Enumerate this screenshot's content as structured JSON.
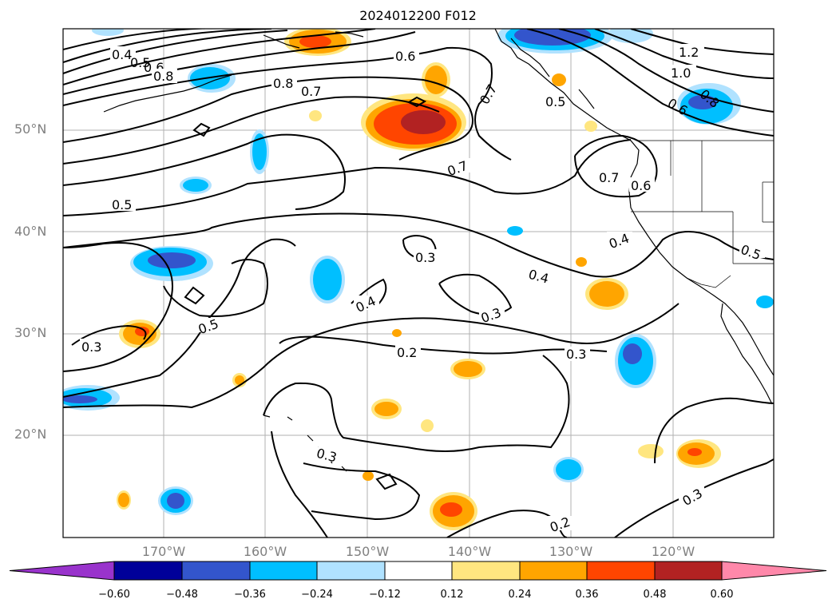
{
  "title": "2024012200 F012",
  "lat_ticks": [
    "50°N",
    "40°N",
    "30°N",
    "20°N"
  ],
  "lon_ticks": [
    "170°W",
    "160°W",
    "150°W",
    "140°W",
    "130°W",
    "120°W"
  ],
  "colorbar": {
    "ticks": [
      "−0.60",
      "−0.48",
      "−0.36",
      "−0.24",
      "−0.12",
      "0.12",
      "0.24",
      "0.36",
      "0.48",
      "0.60"
    ],
    "colors": [
      "#9933cc",
      "#000099",
      "#3355cc",
      "#00bfff",
      "#b0e2ff",
      "#ffffff",
      "#ffe680",
      "#ffa500",
      "#ff4500",
      "#b22222",
      "#ff88aa"
    ]
  },
  "contour_labels": [
    "0.4",
    "0.5",
    "0.6",
    "0.8",
    "0.8",
    "0.7",
    "0.6",
    "0.7",
    "0.5",
    "1.2",
    "1.0",
    "0.8",
    "0.6",
    "0.7",
    "0.6",
    "0.7",
    "0.5",
    "0.4",
    "0.3",
    "0.4",
    "0.5",
    "0.4",
    "0.3",
    "0.3",
    "0.5",
    "0.2",
    "0.3",
    "0.3",
    "0.2",
    "0.3"
  ]
}
